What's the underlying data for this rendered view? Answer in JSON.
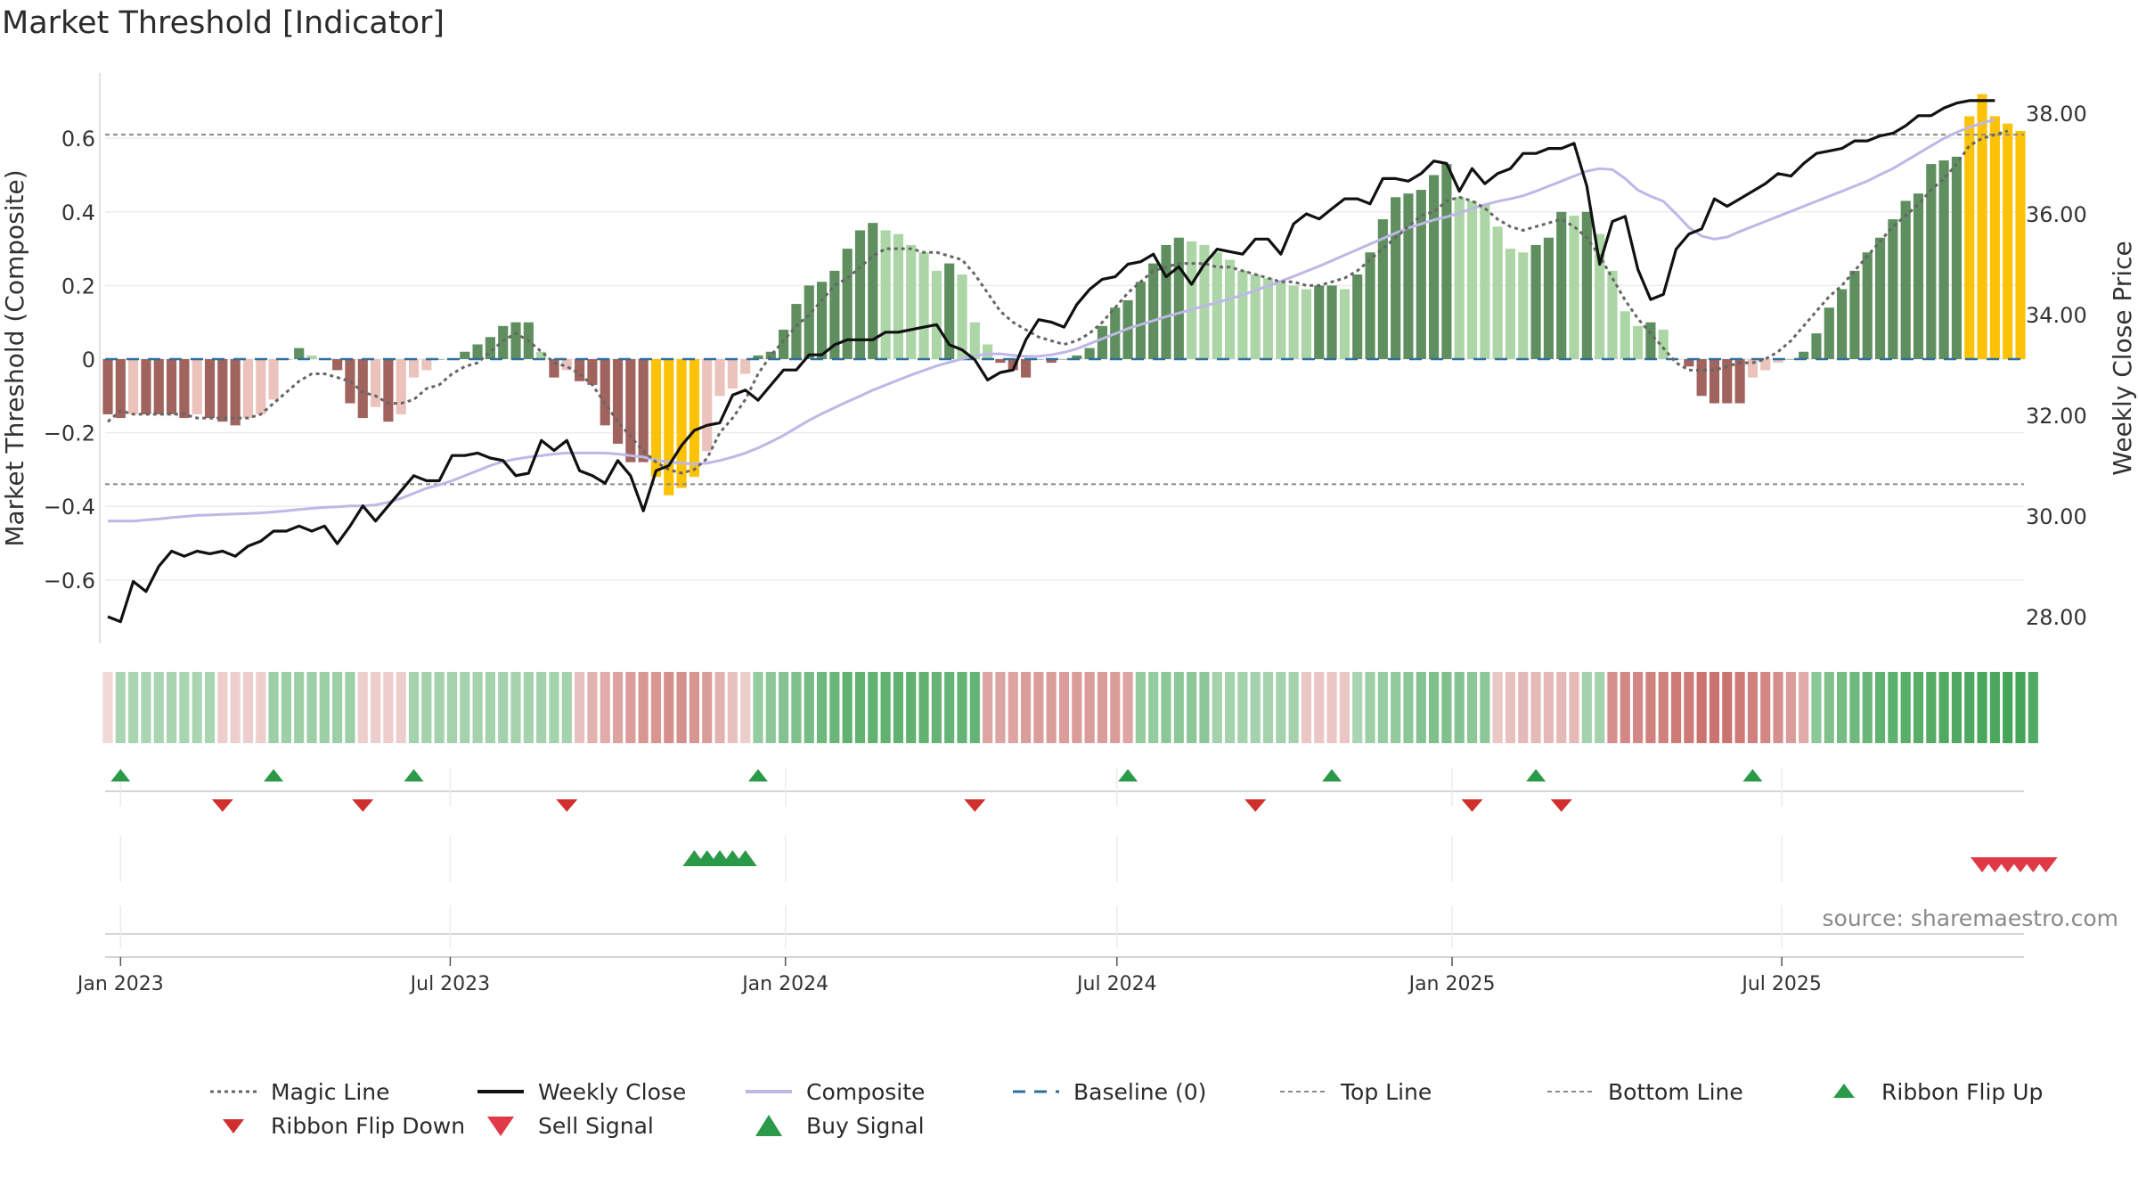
{
  "title": "Market Threshold [Indicator]",
  "source_note": "source: sharemaestro.com",
  "legend": {
    "items": [
      {
        "label": "Magic Line",
        "symbol": "magic"
      },
      {
        "label": "Weekly Close",
        "symbol": "close"
      },
      {
        "label": "Composite",
        "symbol": "composite"
      },
      {
        "label": "Baseline (0)",
        "symbol": "baseline"
      },
      {
        "label": "Top Line",
        "symbol": "topline"
      },
      {
        "label": "Bottom Line",
        "symbol": "bottomline"
      },
      {
        "label": "Ribbon Flip Up",
        "symbol": "flipup"
      },
      {
        "label": "Ribbon Flip Down",
        "symbol": "flipdown"
      },
      {
        "label": "Sell Signal",
        "symbol": "sell"
      },
      {
        "label": "Buy Signal",
        "symbol": "buy"
      }
    ]
  },
  "colors": {
    "dark_green": "#5f8f5f",
    "light_green": "#acd6a6",
    "dark_red": "#a0635d",
    "light_red": "#ecc2bc",
    "gold": "#fbc208",
    "close_line": "#111111",
    "composite_line": "#bdb8e6",
    "magic_line": "#666666",
    "baseline": "#2f6f9e",
    "flip_up": "#2b9a48",
    "flip_down": "#d0302d",
    "sell": "#e03a48",
    "buy": "#2b9a48"
  },
  "chart_data": {
    "type": "bar",
    "x_type": "date",
    "x_tick_labels": [
      "Jan 2023",
      "Jul 2023",
      "Jan 2024",
      "Jul 2024",
      "Jan 2025",
      "Jul 2025"
    ],
    "x_tick_dates": [
      "2023-01-01",
      "2023-07-01",
      "2024-01-01",
      "2024-07-01",
      "2025-01-01",
      "2025-07-01"
    ],
    "first_week": "2022-12-25",
    "left_axis": {
      "label": "Market Threshold (Composite)",
      "ylim": [
        -0.8,
        0.78
      ],
      "ticks": [
        0.6,
        0.4,
        0.2,
        0,
        -0.2,
        -0.4,
        -0.6
      ],
      "tick_labels": [
        "0.6",
        "0.4",
        "0.2",
        "0",
        "−0.2",
        "−0.4",
        "−0.6"
      ]
    },
    "right_axis": {
      "label": "Weekly Close Price",
      "ylim": [
        27.0,
        38.6
      ],
      "ticks": [
        28,
        30,
        32,
        34,
        36,
        38
      ],
      "tick_labels": [
        "28.00",
        "30.00",
        "32.00",
        "34.00",
        "36.00",
        "38.00"
      ]
    },
    "top_line": 0.61,
    "bottom_line": -0.34,
    "baseline": 0,
    "grid": true,
    "series": [
      {
        "name": "Composite",
        "kind": "bar",
        "values": [
          -0.15,
          -0.16,
          -0.15,
          -0.15,
          -0.15,
          -0.15,
          -0.16,
          -0.15,
          -0.16,
          -0.17,
          -0.18,
          -0.16,
          -0.15,
          -0.11,
          0.0,
          0.03,
          0.01,
          0.0,
          -0.03,
          -0.12,
          -0.16,
          -0.13,
          -0.17,
          -0.15,
          -0.05,
          -0.03,
          0.0,
          0.0,
          0.02,
          0.04,
          0.06,
          0.09,
          0.1,
          0.1,
          0.02,
          -0.05,
          -0.03,
          -0.06,
          -0.07,
          -0.18,
          -0.23,
          -0.28,
          -0.28,
          -0.32,
          -0.37,
          -0.35,
          -0.32,
          -0.25,
          -0.1,
          -0.08,
          -0.04,
          0.01,
          0.02,
          0.08,
          0.15,
          0.2,
          0.21,
          0.24,
          0.3,
          0.35,
          0.37,
          0.35,
          0.34,
          0.31,
          0.29,
          0.24,
          0.26,
          0.23,
          0.1,
          0.04,
          -0.01,
          -0.03,
          -0.05,
          0.0,
          -0.01,
          0.0,
          0.01,
          0.03,
          0.09,
          0.14,
          0.16,
          0.21,
          0.26,
          0.31,
          0.33,
          0.32,
          0.31,
          0.29,
          0.27,
          0.24,
          0.23,
          0.22,
          0.21,
          0.2,
          0.19,
          0.2,
          0.2,
          0.19,
          0.23,
          0.29,
          0.38,
          0.44,
          0.45,
          0.46,
          0.5,
          0.53,
          0.44,
          0.43,
          0.42,
          0.36,
          0.3,
          0.29,
          0.31,
          0.33,
          0.4,
          0.39,
          0.4,
          0.34,
          0.24,
          0.13,
          0.09,
          0.1,
          0.08,
          0.0,
          -0.02,
          -0.1,
          -0.12,
          -0.12,
          -0.12,
          -0.05,
          -0.03,
          -0.01,
          0.0,
          0.02,
          0.07,
          0.14,
          0.19,
          0.24,
          0.29,
          0.33,
          0.38,
          0.43,
          0.45,
          0.53,
          0.54,
          0.55,
          0.66,
          0.72,
          0.66,
          0.64,
          0.62
        ]
      },
      {
        "name": "Magic Line",
        "kind": "line",
        "values": [
          -0.17,
          -0.14,
          -0.15,
          -0.15,
          -0.15,
          -0.15,
          -0.15,
          -0.16,
          -0.16,
          -0.16,
          -0.16,
          -0.16,
          -0.15,
          -0.12,
          -0.09,
          -0.06,
          -0.04,
          -0.04,
          -0.05,
          -0.06,
          -0.09,
          -0.1,
          -0.12,
          -0.12,
          -0.11,
          -0.08,
          -0.07,
          -0.04,
          -0.02,
          -0.01,
          0.02,
          0.05,
          0.07,
          0.05,
          0.02,
          -0.01,
          -0.02,
          -0.04,
          -0.07,
          -0.12,
          -0.17,
          -0.21,
          -0.25,
          -0.28,
          -0.3,
          -0.31,
          -0.3,
          -0.27,
          -0.2,
          -0.16,
          -0.11,
          -0.04,
          0.01,
          0.05,
          0.09,
          0.12,
          0.16,
          0.2,
          0.22,
          0.25,
          0.28,
          0.3,
          0.3,
          0.3,
          0.29,
          0.29,
          0.28,
          0.27,
          0.23,
          0.18,
          0.13,
          0.1,
          0.08,
          0.06,
          0.05,
          0.04,
          0.05,
          0.07,
          0.1,
          0.14,
          0.18,
          0.21,
          0.24,
          0.25,
          0.26,
          0.26,
          0.26,
          0.25,
          0.25,
          0.24,
          0.23,
          0.22,
          0.21,
          0.21,
          0.2,
          0.2,
          0.21,
          0.22,
          0.24,
          0.27,
          0.3,
          0.33,
          0.36,
          0.39,
          0.4,
          0.43,
          0.44,
          0.43,
          0.41,
          0.38,
          0.36,
          0.35,
          0.36,
          0.37,
          0.38,
          0.36,
          0.33,
          0.28,
          0.22,
          0.16,
          0.11,
          0.07,
          0.03,
          -0.01,
          -0.03,
          -0.03,
          -0.03,
          -0.02,
          -0.01,
          -0.01,
          0.0,
          0.02,
          0.05,
          0.09,
          0.13,
          0.17,
          0.2,
          0.24,
          0.28,
          0.32,
          0.36,
          0.39,
          0.42,
          0.46,
          0.49,
          0.53,
          0.58,
          0.6,
          0.61,
          0.62
        ]
      },
      {
        "name": "Weekly Close",
        "kind": "line",
        "axis": "right",
        "values": [
          28.0,
          27.9,
          28.7,
          28.5,
          29.0,
          29.3,
          29.2,
          29.3,
          29.25,
          29.3,
          29.2,
          29.4,
          29.5,
          29.7,
          29.7,
          29.8,
          29.7,
          29.8,
          29.45,
          29.8,
          30.2,
          29.9,
          30.2,
          30.5,
          30.8,
          30.7,
          30.7,
          31.2,
          31.2,
          31.25,
          31.15,
          31.1,
          30.8,
          30.85,
          31.5,
          31.3,
          31.5,
          30.9,
          30.8,
          30.65,
          31.1,
          30.8,
          30.1,
          30.9,
          31.0,
          31.4,
          31.7,
          31.8,
          31.85,
          32.4,
          32.5,
          32.3,
          32.6,
          32.9,
          32.9,
          33.2,
          33.2,
          33.4,
          33.5,
          33.5,
          33.5,
          33.65,
          33.65,
          33.7,
          33.75,
          33.8,
          33.4,
          33.3,
          33.1,
          32.7,
          32.85,
          32.9,
          33.5,
          33.9,
          33.85,
          33.75,
          34.2,
          34.5,
          34.7,
          34.75,
          35.0,
          35.05,
          35.2,
          34.75,
          34.95,
          34.6,
          35.0,
          35.3,
          35.25,
          35.2,
          35.5,
          35.5,
          35.2,
          35.8,
          36.0,
          35.9,
          36.1,
          36.3,
          36.3,
          36.2,
          36.7,
          36.7,
          36.65,
          36.8,
          37.05,
          37.0,
          36.45,
          36.9,
          36.6,
          36.8,
          36.9,
          37.2,
          37.2,
          37.3,
          37.3,
          37.4,
          36.55,
          35.0,
          35.85,
          35.95,
          34.9,
          34.3,
          34.4,
          35.3,
          35.6,
          35.7,
          36.3,
          36.15,
          36.3,
          36.45,
          36.6,
          36.8,
          36.75,
          37.0,
          37.2,
          37.25,
          37.3,
          37.45,
          37.45,
          37.55,
          37.6,
          37.75,
          37.95,
          37.95,
          38.1,
          38.2,
          38.25,
          38.25,
          38.25
        ]
      },
      {
        "name": "Composite",
        "kind": "line",
        "axis": "right",
        "values": [
          29.9,
          29.9,
          29.9,
          29.92,
          29.94,
          29.97,
          29.99,
          30.01,
          30.02,
          30.03,
          30.04,
          30.05,
          30.06,
          30.08,
          30.1,
          30.13,
          30.15,
          30.17,
          30.18,
          30.2,
          30.2,
          30.22,
          30.27,
          30.35,
          30.45,
          30.55,
          30.62,
          30.7,
          30.8,
          30.9,
          31.0,
          31.08,
          31.13,
          31.17,
          31.2,
          31.23,
          31.25,
          31.25,
          31.25,
          31.25,
          31.23,
          31.2,
          31.17,
          31.11,
          31.07,
          31.05,
          31.03,
          31.05,
          31.1,
          31.17,
          31.25,
          31.35,
          31.47,
          31.6,
          31.75,
          31.9,
          32.03,
          32.15,
          32.27,
          32.38,
          32.5,
          32.6,
          32.7,
          32.8,
          32.89,
          32.98,
          33.05,
          33.12,
          33.18,
          33.22,
          33.22,
          33.19,
          33.17,
          33.17,
          33.2,
          33.25,
          33.32,
          33.42,
          33.52,
          33.62,
          33.72,
          33.8,
          33.88,
          33.96,
          34.03,
          34.1,
          34.17,
          34.24,
          34.31,
          34.39,
          34.48,
          34.57,
          34.66,
          34.76,
          34.86,
          34.96,
          35.07,
          35.18,
          35.29,
          35.4,
          35.51,
          35.62,
          35.72,
          35.8,
          35.88,
          35.94,
          36.02,
          36.1,
          36.18,
          36.25,
          36.3,
          36.36,
          36.45,
          36.55,
          36.65,
          36.75,
          36.85,
          36.9,
          36.88,
          36.7,
          36.47,
          36.35,
          36.25,
          36.0,
          35.73,
          35.56,
          35.5,
          35.54,
          35.65,
          35.75,
          35.85,
          35.95,
          36.05,
          36.15,
          36.25,
          36.35,
          36.45,
          36.55,
          36.65,
          36.78,
          36.9,
          37.05,
          37.2,
          37.35,
          37.5,
          37.62,
          37.72,
          37.8,
          37.88
        ]
      }
    ],
    "ribbon": {
      "values": [
        -0.02,
        0.25,
        0.25,
        0.25,
        0.25,
        0.25,
        0.25,
        0.25,
        0.25,
        -0.1,
        -0.1,
        -0.1,
        -0.1,
        0.35,
        0.35,
        0.35,
        0.35,
        0.35,
        0.35,
        0.35,
        -0.1,
        -0.1,
        -0.1,
        -0.1,
        0.3,
        0.3,
        0.3,
        0.3,
        0.3,
        0.3,
        0.3,
        0.3,
        0.3,
        0.3,
        0.3,
        0.3,
        0.3,
        -0.2,
        -0.3,
        -0.35,
        -0.4,
        -0.45,
        -0.5,
        -0.5,
        -0.55,
        -0.55,
        -0.5,
        -0.45,
        -0.3,
        -0.2,
        -0.1,
        0.4,
        0.45,
        0.5,
        0.55,
        0.6,
        0.65,
        0.7,
        0.75,
        0.75,
        0.75,
        0.75,
        0.75,
        0.75,
        0.75,
        0.72,
        0.72,
        0.72,
        0.72,
        -0.4,
        -0.4,
        -0.4,
        -0.45,
        -0.45,
        -0.45,
        -0.45,
        -0.45,
        -0.45,
        -0.45,
        -0.45,
        -0.4,
        0.4,
        0.4,
        0.45,
        0.45,
        0.45,
        0.45,
        0.3,
        0.3,
        0.3,
        0.3,
        0.3,
        0.3,
        0.3,
        -0.15,
        -0.15,
        -0.15,
        -0.15,
        0.25,
        0.35,
        0.38,
        0.42,
        0.46,
        0.5,
        0.55,
        0.55,
        0.5,
        0.45,
        0.45,
        -0.15,
        -0.2,
        -0.25,
        -0.25,
        -0.25,
        -0.25,
        -0.25,
        0.3,
        0.3,
        -0.55,
        -0.6,
        -0.6,
        -0.65,
        -0.65,
        -0.7,
        -0.7,
        -0.75,
        -0.75,
        -0.75,
        -0.7,
        -0.65,
        -0.6,
        -0.55,
        -0.45,
        -0.35,
        0.45,
        0.55,
        0.6,
        0.65,
        0.7,
        0.75,
        0.78,
        0.8,
        0.82,
        0.84,
        0.85,
        0.86,
        0.88,
        0.9,
        0.9,
        0.95,
        0.95,
        0.85
      ]
    },
    "ribbon_flip_up_weeks": [
      1,
      13,
      24,
      51,
      80,
      96,
      112,
      129
    ],
    "ribbon_flip_down_weeks": [
      9,
      20,
      36,
      68,
      90,
      107,
      114
    ],
    "buy_signal_weeks": [
      46,
      47,
      48,
      49,
      50
    ],
    "sell_signal_weeks": [
      147,
      148,
      149,
      150,
      151,
      152
    ]
  }
}
